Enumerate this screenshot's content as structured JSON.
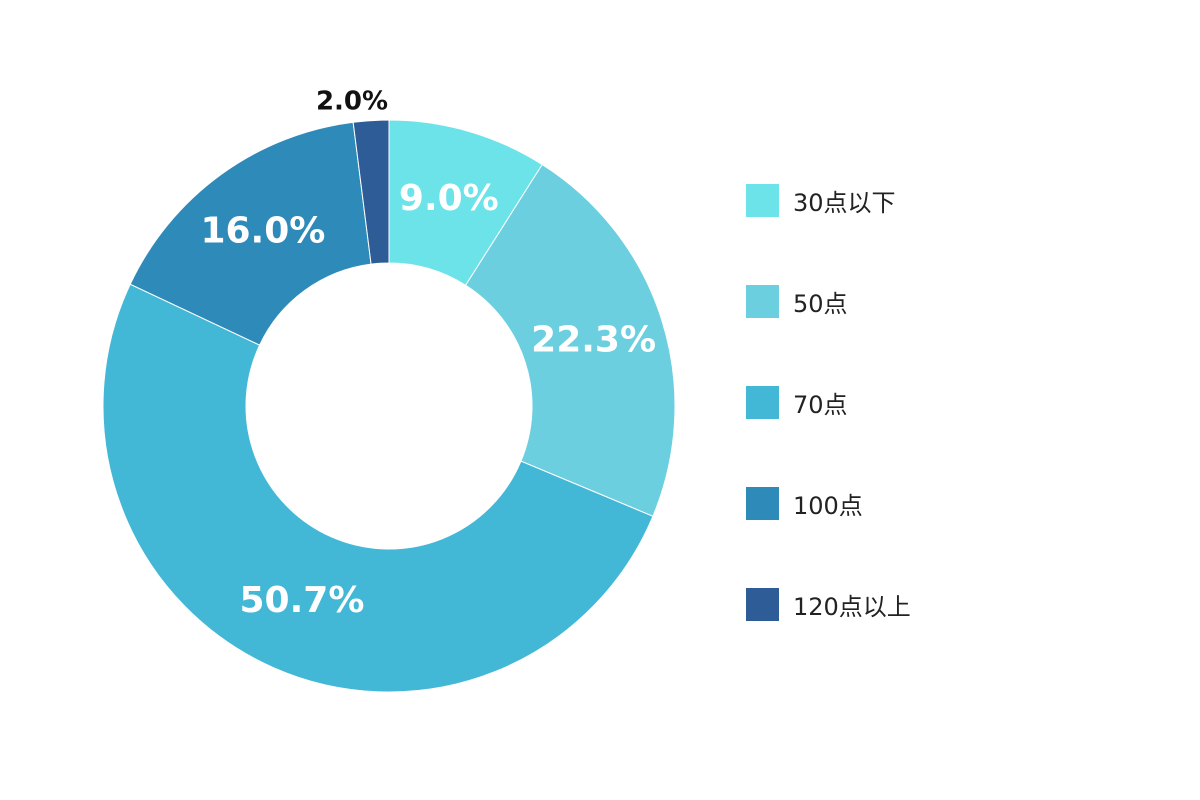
{
  "chart_data": {
    "type": "pie",
    "donut": true,
    "categories": [
      "30点以下",
      "50点",
      "70点",
      "100点",
      "120点以上"
    ],
    "values": [
      9.0,
      22.3,
      50.7,
      16.0,
      2.0
    ],
    "value_labels": [
      "9.0%",
      "22.3%",
      "50.7%",
      "16.0%",
      "2.0%"
    ],
    "colors": [
      "#6ce3e9",
      "#6ccfe0",
      "#42b7d6",
      "#2e8ab8",
      "#2d5c97"
    ],
    "legend_position": "right",
    "start": "top, clockwise"
  }
}
